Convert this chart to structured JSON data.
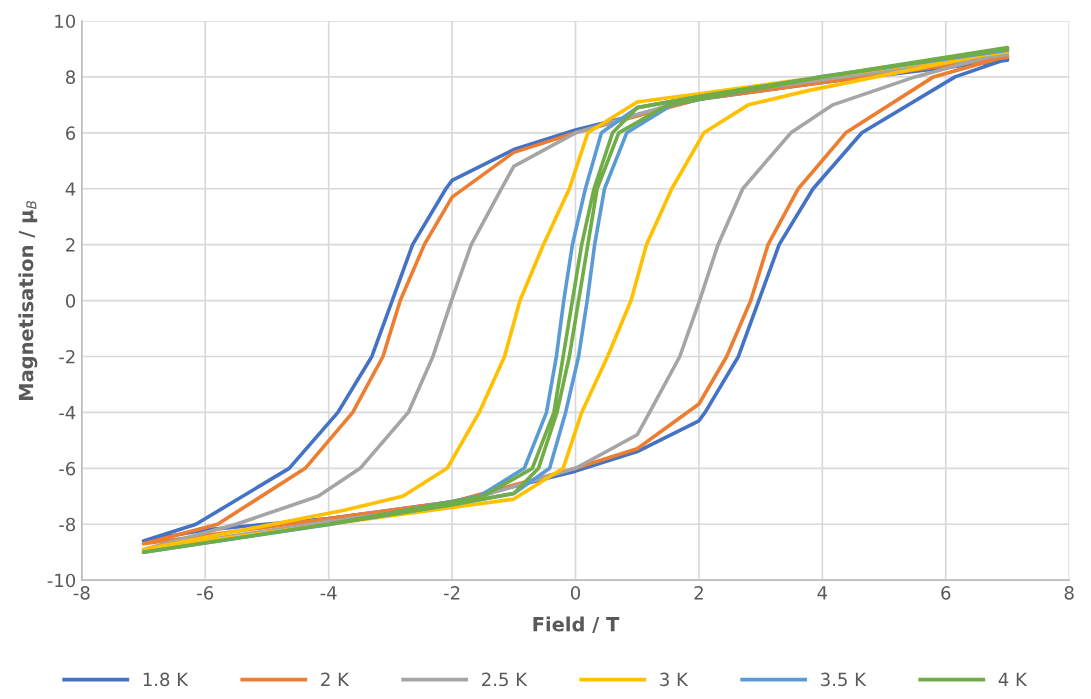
{
  "chart_data": {
    "type": "line",
    "xlabel": "Field / T",
    "ylabel": "Magnetisation / μ$_{B}$",
    "xlim": [
      -8,
      8
    ],
    "ylim": [
      -10,
      10
    ],
    "xticks": [
      -8,
      -6,
      -4,
      -2,
      0,
      2,
      4,
      6,
      8
    ],
    "yticks": [
      -10,
      -8,
      -6,
      -4,
      -2,
      0,
      2,
      4,
      6,
      8,
      10
    ],
    "grid": true,
    "legend": "bottom",
    "marker": "none",
    "line_style": "solid",
    "series": [
      {
        "name": "1.8 K",
        "color": "#4472c4",
        "x": [
          7,
          4,
          2,
          0,
          -1,
          -2,
          -2.1,
          -2.64,
          -2.97,
          -3.3,
          -3.85,
          -4.64,
          -6.15,
          -7,
          -6,
          -4,
          -2,
          0,
          1,
          2,
          2.1,
          2.64,
          2.97,
          3.3,
          3.85,
          4.64,
          6.15,
          7
        ],
        "values": [
          8.6,
          7.8,
          7.2,
          6.1,
          5.4,
          4.3,
          4.0,
          2,
          0,
          -2,
          -4,
          -6,
          -8,
          -8.6,
          -8.2,
          -7.8,
          -7.2,
          -6.1,
          -5.4,
          -4.3,
          -4.0,
          -2,
          0,
          2,
          4,
          6,
          8,
          8.65
        ]
      },
      {
        "name": "2 K",
        "color": "#ed7d31",
        "x": [
          7,
          4,
          2,
          0,
          -1,
          -2,
          -2.45,
          -2.84,
          -3.12,
          -3.61,
          -4.38,
          -5.8,
          -7,
          -4,
          -2,
          0,
          1,
          2,
          2.45,
          2.84,
          3.12,
          3.61,
          4.38,
          5.8,
          7
        ],
        "values": [
          8.7,
          7.8,
          7.2,
          6.0,
          5.3,
          3.7,
          2,
          0,
          -2,
          -4,
          -6,
          -8,
          -8.7,
          -7.8,
          -7.2,
          -6.0,
          -5.3,
          -3.7,
          -2,
          0,
          2,
          4,
          6,
          8,
          8.75
        ]
      },
      {
        "name": "2.5 K",
        "color": "#a5a5a5",
        "x": [
          7,
          4,
          2,
          0,
          -1,
          -1.2,
          -1.69,
          -2.01,
          -2.31,
          -2.71,
          -3.49,
          -4.17,
          -5.5,
          -7,
          -4,
          -2,
          0,
          1,
          1.2,
          1.69,
          2.01,
          2.31,
          2.71,
          3.49,
          4.17,
          5.5,
          7
        ],
        "values": [
          8.8,
          7.9,
          7.3,
          6.0,
          4.8,
          4,
          2,
          0,
          -2,
          -4,
          -6,
          -7,
          -8,
          -8.9,
          -7.9,
          -7.3,
          -6.0,
          -4.8,
          -4,
          -2,
          0,
          2,
          4,
          6,
          7,
          8,
          8.9
        ]
      },
      {
        "name": "3 K",
        "color": "#ffc000",
        "x": [
          7,
          4,
          2,
          1,
          0.2,
          -0.1,
          -0.52,
          -0.9,
          -1.15,
          -1.56,
          -2.08,
          -2.8,
          -3.75,
          -7,
          -4,
          -2,
          -1,
          -0.2,
          0.1,
          0.52,
          0.9,
          1.15,
          1.56,
          2.08,
          2.8,
          3.75,
          7
        ],
        "values": [
          8.9,
          8.0,
          7.4,
          7.1,
          6,
          4,
          2,
          0,
          -2,
          -4,
          -6,
          -7,
          -7.5,
          -8.9,
          -8.0,
          -7.4,
          -7.1,
          -6,
          -4,
          -2,
          0,
          2,
          4,
          6,
          7,
          7.5,
          8.95
        ]
      },
      {
        "name": "3.5 K",
        "color": "#5b9bd5",
        "x": [
          7,
          4,
          2,
          1,
          0.42,
          0.16,
          -0.05,
          -0.19,
          -0.31,
          -0.47,
          -0.83,
          -1.56,
          -3.96,
          -7,
          -4,
          -2,
          -1,
          -0.42,
          -0.16,
          0.05,
          0.19,
          0.31,
          0.47,
          0.83,
          1.56,
          3.96,
          7
        ],
        "values": [
          9.0,
          8.0,
          7.3,
          6.9,
          6,
          4,
          2,
          0,
          -2,
          -4,
          -6,
          -7,
          -8,
          -9.0,
          -8.0,
          -7.3,
          -6.9,
          -6,
          -4,
          -2,
          0,
          2,
          4,
          6,
          7,
          8,
          8.95
        ]
      },
      {
        "name": "4 K",
        "color": "#70ad47",
        "x": [
          7,
          4,
          2,
          1,
          0.6,
          0.3,
          0.1,
          -0.05,
          -0.2,
          -0.35,
          -0.7,
          -1.5,
          -4,
          -7,
          -4,
          -2,
          -1,
          -0.6,
          -0.3,
          -0.1,
          0.05,
          0.2,
          0.35,
          0.7,
          1.5,
          4,
          7
        ],
        "values": [
          9.0,
          8.0,
          7.3,
          6.9,
          6,
          4,
          2,
          0,
          -2,
          -4,
          -6,
          -7,
          -8,
          -9.0,
          -8.0,
          -7.3,
          -6.9,
          -6,
          -4,
          -2,
          0,
          2,
          4,
          6,
          7,
          8,
          9.05
        ]
      }
    ]
  }
}
